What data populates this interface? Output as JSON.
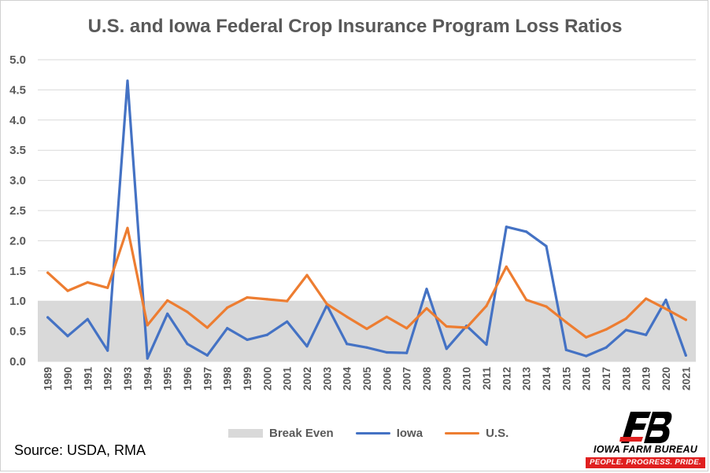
{
  "chart_data": {
    "type": "line",
    "title": "U.S. and Iowa Federal Crop Insurance Program Loss Ratios",
    "xlabel": "",
    "ylabel": "",
    "ylim": [
      0,
      5
    ],
    "yticks": [
      "0.0",
      "0.5",
      "1.0",
      "1.5",
      "2.0",
      "2.5",
      "3.0",
      "3.5",
      "4.0",
      "4.5",
      "5.0"
    ],
    "grid": true,
    "legend_position": "bottom",
    "categories": [
      "1989",
      "1990",
      "1991",
      "1992",
      "1993",
      "1994",
      "1995",
      "1996",
      "1997",
      "1998",
      "1999",
      "2000",
      "2001",
      "2002",
      "2003",
      "2004",
      "2005",
      "2006",
      "2007",
      "2008",
      "2009",
      "2010",
      "2011",
      "2012",
      "2013",
      "2014",
      "2015",
      "2016",
      "2017",
      "2018",
      "2019",
      "2020",
      "2021"
    ],
    "band": {
      "name": "Break Even",
      "from": 0,
      "to": 1.0,
      "color": "#d9d9d9"
    },
    "series": [
      {
        "name": "Iowa",
        "color": "#4472c4",
        "values": [
          0.73,
          0.42,
          0.7,
          0.18,
          4.65,
          0.05,
          0.79,
          0.29,
          0.1,
          0.55,
          0.36,
          0.44,
          0.66,
          0.25,
          0.93,
          0.29,
          0.23,
          0.15,
          0.14,
          1.2,
          0.21,
          0.59,
          0.28,
          2.23,
          2.15,
          1.91,
          0.19,
          0.09,
          0.23,
          0.52,
          0.44,
          1.02,
          0.1
        ]
      },
      {
        "name": "U.S.",
        "color": "#ed7d31",
        "values": [
          1.47,
          1.17,
          1.31,
          1.22,
          2.21,
          0.6,
          1.01,
          0.82,
          0.56,
          0.89,
          1.06,
          1.03,
          1.0,
          1.43,
          0.95,
          0.74,
          0.54,
          0.74,
          0.55,
          0.88,
          0.58,
          0.56,
          0.92,
          1.57,
          1.02,
          0.91,
          0.65,
          0.4,
          0.53,
          0.71,
          1.04,
          0.87,
          0.69
        ]
      }
    ]
  },
  "source_note": "Source: USDA, RMA",
  "logo": {
    "name": "IOWA FARM BUREAU",
    "tagline": "PEOPLE. PROGRESS. PRIDE.",
    "red": "#e02020"
  }
}
